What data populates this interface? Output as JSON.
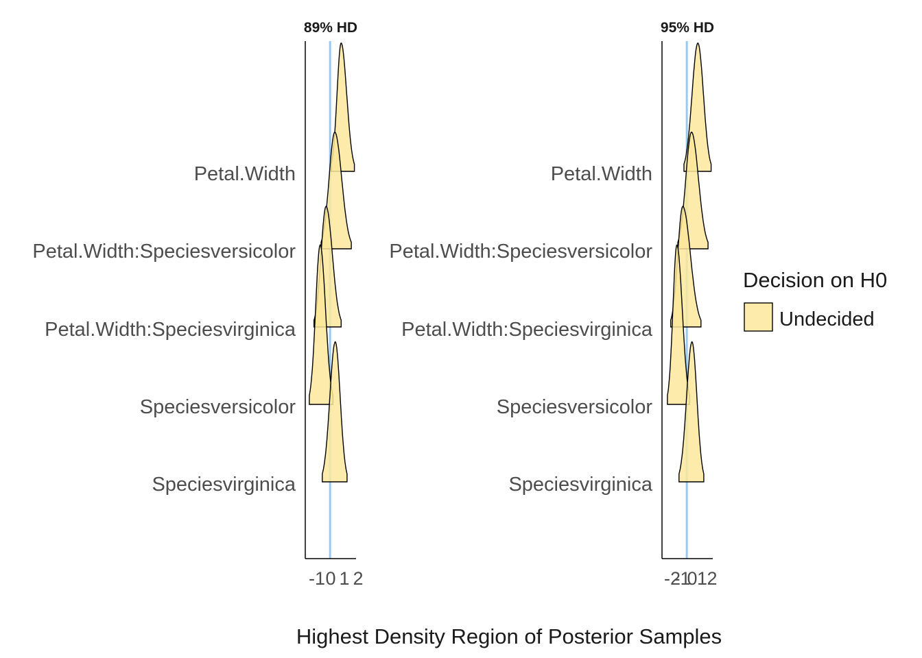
{
  "chart_data": {
    "type": "ridgeline",
    "xlabel": "Highest Density Region of Posterior Samples",
    "reference_line": 0,
    "colors": {
      "fill": "#FBE89B",
      "stroke": "#000000",
      "reference": "#9DC8EC",
      "axis": "#000000"
    },
    "legend": {
      "title": "Decision on H0",
      "placement": "right",
      "entries": [
        {
          "label": "Undecided",
          "color": "#FBE89B"
        }
      ]
    },
    "panels": [
      {
        "title": "89% HD",
        "xlim": [
          -1.05,
          1.1
        ],
        "ticks": [
          {
            "value": -1,
            "label": "-1"
          },
          {
            "value": 0,
            "label": "0"
          },
          {
            "value": 1,
            "label": "1"
          },
          {
            "value": 2,
            "label": "2"
          }
        ],
        "series": [
          {
            "name": "Petal.Width",
            "low": 0.05,
            "mode": 0.47,
            "high": 1.03,
            "peak": 1.65
          },
          {
            "name": "Petal.Width:Speciesversicolor",
            "low": -0.38,
            "mode": 0.2,
            "high": 0.9,
            "peak": 1.5
          },
          {
            "name": "Petal.Width:Speciesvirginica",
            "low": -0.68,
            "mode": -0.17,
            "high": 0.47,
            "peak": 1.55
          },
          {
            "name": "Speciesversicolor",
            "low": -0.88,
            "mode": -0.42,
            "high": 0.12,
            "peak": 2.05
          },
          {
            "name": "Speciesvirginica",
            "low": -0.33,
            "mode": 0.22,
            "high": 0.72,
            "peak": 1.8
          }
        ]
      },
      {
        "title": "95% HD",
        "xlim": [
          -1.05,
          1.1
        ],
        "ticks": [
          {
            "value": -2,
            "label": "-2"
          },
          {
            "value": -1,
            "label": "-1"
          },
          {
            "value": 0,
            "label": "0"
          },
          {
            "value": 1,
            "label": "1"
          },
          {
            "value": 2,
            "label": "2"
          }
        ],
        "series": [
          {
            "name": "Petal.Width",
            "low": -0.12,
            "mode": 0.47,
            "high": 1.03,
            "peak": 1.65
          },
          {
            "name": "Petal.Width:Speciesversicolor",
            "low": -0.38,
            "mode": 0.2,
            "high": 0.9,
            "peak": 1.5
          },
          {
            "name": "Petal.Width:Speciesvirginica",
            "low": -0.68,
            "mode": -0.17,
            "high": 0.6,
            "peak": 1.55
          },
          {
            "name": "Speciesversicolor",
            "low": -0.82,
            "mode": -0.42,
            "high": 0.12,
            "peak": 2.05
          },
          {
            "name": "Speciesvirginica",
            "low": -0.33,
            "mode": 0.22,
            "high": 0.72,
            "peak": 1.8
          }
        ]
      }
    ]
  }
}
